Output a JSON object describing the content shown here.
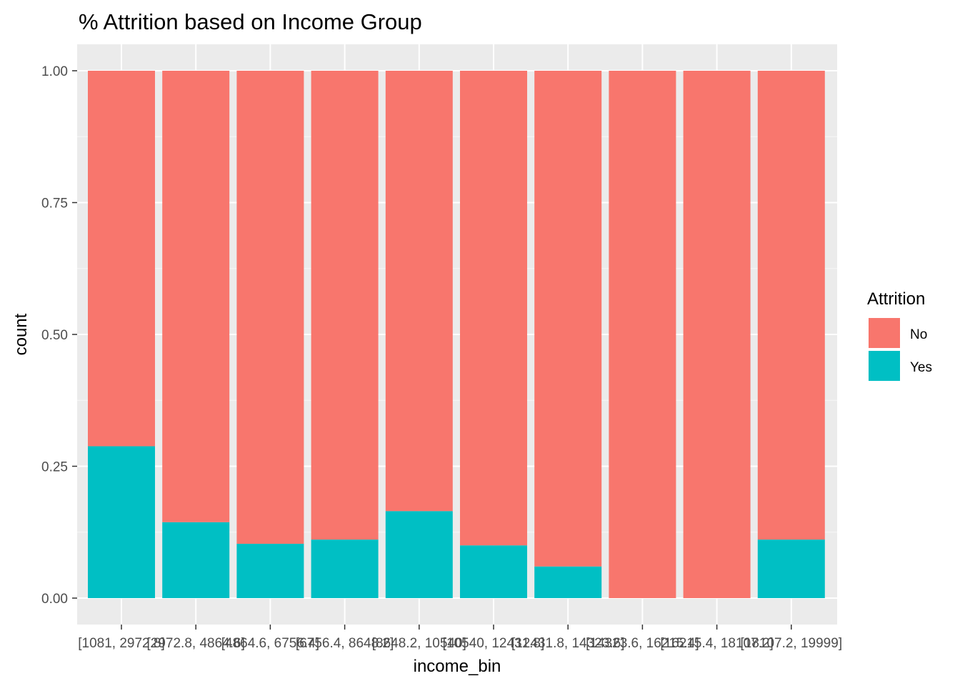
{
  "chart_data": {
    "type": "bar",
    "stacked": true,
    "title": "% Attrition based on Income Group",
    "xlabel": "income_bin",
    "ylabel": "count",
    "ylim": [
      0,
      1
    ],
    "yticks": [
      "0.00",
      "0.25",
      "0.50",
      "0.75",
      "1.00"
    ],
    "ytick_values": [
      0,
      0.25,
      0.5,
      0.75,
      1
    ],
    "grid": true,
    "legend_position": "right",
    "legend_title": "Attrition",
    "categories": [
      "[1081, 2972.8]",
      "[2972.8, 4864.6]",
      "[4864.6, 6756.4]",
      "[6756.4, 8648.2]",
      "[8648.2, 10540]",
      "[10540, 12431.8]",
      "[12431.8, 14323.6]",
      "[14323.6, 16215.4]",
      "[16215.4, 18107.2]",
      "[18107.2, 19999]"
    ],
    "series": [
      {
        "name": "No",
        "color": "#F8766D",
        "values": [
          0.712,
          0.856,
          0.897,
          0.889,
          0.835,
          0.9,
          0.94,
          1.0,
          1.0,
          0.889
        ]
      },
      {
        "name": "Yes",
        "color": "#00BFC4",
        "values": [
          0.288,
          0.144,
          0.103,
          0.111,
          0.165,
          0.1,
          0.06,
          0.0,
          0.0,
          0.111
        ]
      }
    ]
  }
}
